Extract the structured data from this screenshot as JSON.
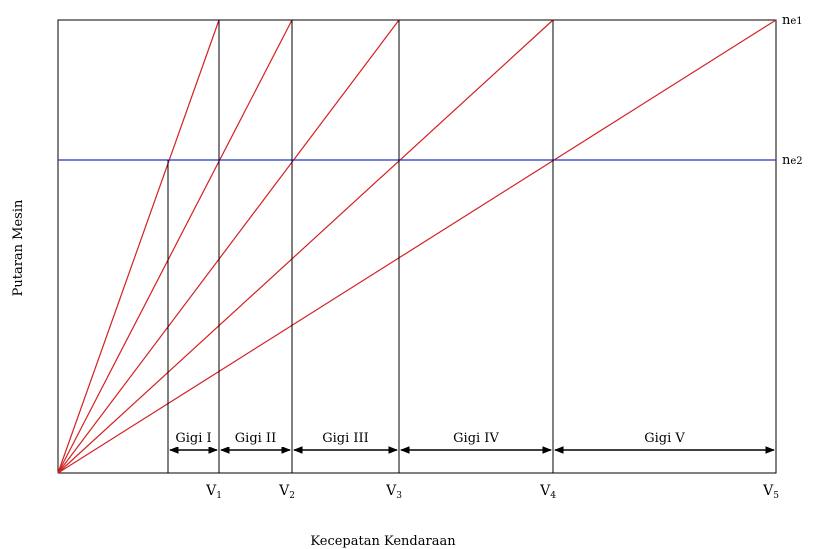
{
  "chart_data": {
    "type": "line",
    "title": "",
    "xlabel": "Kecepatan Kendaraan",
    "ylabel": "Putaran Mesin",
    "y_levels": [
      {
        "name": "ne1",
        "main": "n",
        "sub": "e1",
        "color": "#000000"
      },
      {
        "name": "ne2",
        "main": "n",
        "sub": "e2",
        "color": "#2233cc"
      }
    ],
    "x_ticks": [
      {
        "main": "V",
        "sub": "1"
      },
      {
        "main": "V",
        "sub": "2"
      },
      {
        "main": "V",
        "sub": "3"
      },
      {
        "main": "V",
        "sub": "4"
      },
      {
        "main": "V",
        "sub": "5"
      }
    ],
    "series": [
      {
        "name": "Gigi I",
        "color": "#d42020"
      },
      {
        "name": "Gigi II",
        "color": "#d42020"
      },
      {
        "name": "Gigi III",
        "color": "#d42020"
      },
      {
        "name": "Gigi IV",
        "color": "#d42020"
      },
      {
        "name": "Gigi V",
        "color": "#d42020"
      }
    ],
    "gear_ranges": [
      "Gigi I",
      "Gigi II",
      "Gigi III",
      "Gigi IV",
      "Gigi V"
    ],
    "grid": false,
    "legend": "none"
  }
}
